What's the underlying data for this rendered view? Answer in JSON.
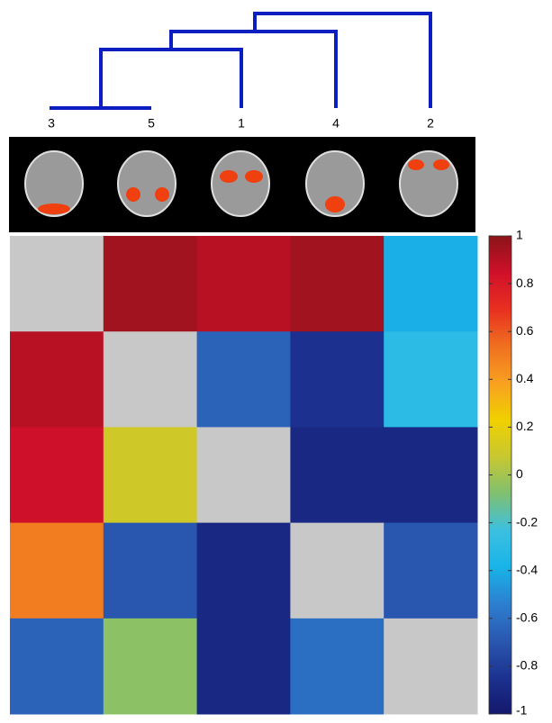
{
  "chart_data": {
    "type": "heatmap",
    "leaf_labels": [
      "3",
      "5",
      "1",
      "4",
      "2"
    ],
    "values": [
      [
        null,
        0.95,
        0.9,
        0.95,
        -0.4
      ],
      [
        0.9,
        null,
        -0.65,
        -0.85,
        -0.3
      ],
      [
        0.85,
        0.1,
        null,
        -0.9,
        -0.9
      ],
      [
        0.5,
        -0.7,
        -0.9,
        null,
        -0.7
      ],
      [
        -0.65,
        -0.05,
        -0.9,
        -0.6,
        null
      ]
    ],
    "null_color": "#c8c8c8",
    "colormap": [
      "#14186c",
      "#1c3290",
      "#2a58b0",
      "#2c7fd0",
      "#18b4e8",
      "#3cc0e0",
      "#80c070",
      "#c8c830",
      "#f0d000",
      "#f8a020",
      "#f07020",
      "#e83020",
      "#d0102a",
      "#8a1418"
    ],
    "clim": [
      -1,
      1
    ],
    "colorbar_ticks": [
      1,
      0.8,
      0.6,
      0.4,
      0.2,
      0,
      -0.2,
      -0.4,
      -0.6,
      -0.8,
      -1
    ],
    "dendrogram_color": "#0b1fc0"
  }
}
